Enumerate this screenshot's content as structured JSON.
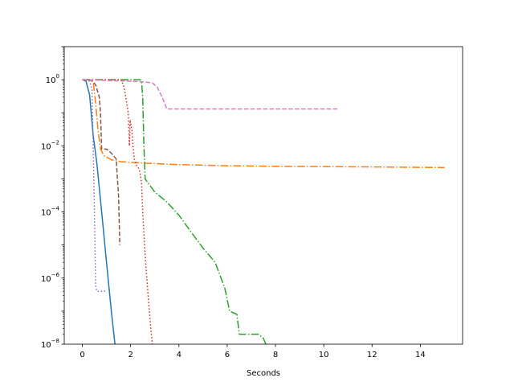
{
  "chart_data": {
    "type": "line",
    "title": "",
    "xlabel": "Seconds",
    "ylabel": "",
    "yscale": "log",
    "xlim": [
      -0.75,
      15.75
    ],
    "ylim": [
      1e-08,
      10
    ],
    "grid": false,
    "x_ticks": [
      {
        "value": 0,
        "label": "0"
      },
      {
        "value": 2,
        "label": "2"
      },
      {
        "value": 4,
        "label": "4"
      },
      {
        "value": 6,
        "label": "6"
      },
      {
        "value": 8,
        "label": "8"
      },
      {
        "value": 10,
        "label": "10"
      },
      {
        "value": 12,
        "label": "12"
      },
      {
        "value": 14,
        "label": "14"
      }
    ],
    "y_ticks": [
      {
        "value": 1,
        "base": "10",
        "exp": "0"
      },
      {
        "value": 0.01,
        "base": "10",
        "exp": "−2"
      },
      {
        "value": 0.0001,
        "base": "10",
        "exp": "−4"
      },
      {
        "value": 1e-06,
        "base": "10",
        "exp": "−6"
      },
      {
        "value": 1e-08,
        "base": "10",
        "exp": "−8"
      }
    ],
    "series": [
      {
        "color": "#1f77b4",
        "dash": "solid",
        "points": [
          [
            0,
            1
          ],
          [
            0.15,
            0.9
          ],
          [
            0.3,
            0.35
          ],
          [
            0.45,
            0.02
          ],
          [
            0.6,
            0.003
          ],
          [
            0.8,
            0.0001
          ],
          [
            1.0,
            3e-06
          ],
          [
            1.2,
            1e-07
          ],
          [
            1.35,
            1e-08
          ],
          [
            1.45,
            1.2e-09
          ]
        ]
      },
      {
        "color": "#ff7f0e",
        "dash": "dashdot",
        "points": [
          [
            0,
            1
          ],
          [
            0.3,
            1
          ],
          [
            0.45,
            0.85
          ],
          [
            0.55,
            0.2
          ],
          [
            0.65,
            0.03
          ],
          [
            0.75,
            0.008
          ],
          [
            0.9,
            0.005
          ],
          [
            1.2,
            0.0038
          ],
          [
            1.6,
            0.0033
          ],
          [
            2.5,
            0.003
          ],
          [
            4,
            0.0027
          ],
          [
            6,
            0.0025
          ],
          [
            8,
            0.0024
          ],
          [
            10,
            0.00235
          ],
          [
            12,
            0.0023
          ],
          [
            15,
            0.0022
          ]
        ]
      },
      {
        "color": "#2ca02c",
        "dash": "dashdot",
        "points": [
          [
            0,
            1
          ],
          [
            2.4,
            1
          ],
          [
            2.45,
            0.9
          ],
          [
            2.5,
            0.3
          ],
          [
            2.55,
            0.01
          ],
          [
            2.6,
            0.001
          ],
          [
            3,
            0.0004
          ],
          [
            3.5,
            0.0002
          ],
          [
            4,
            8e-05
          ],
          [
            4.5,
            2.5e-05
          ],
          [
            5,
            8e-06
          ],
          [
            5.5,
            3e-06
          ],
          [
            5.9,
            5e-07
          ],
          [
            6.1,
            1e-07
          ],
          [
            6.4,
            8e-08
          ],
          [
            6.5,
            2e-08
          ],
          [
            7.3,
            2e-08
          ],
          [
            7.5,
            1.5e-08
          ],
          [
            7.6,
            1e-08
          ],
          [
            7.8,
            6e-09
          ]
        ]
      },
      {
        "color": "#d62728",
        "dash": "dotted",
        "points": [
          [
            0,
            1
          ],
          [
            1.6,
            1
          ],
          [
            1.7,
            0.7
          ],
          [
            1.8,
            0.3
          ],
          [
            1.9,
            0.1
          ],
          [
            1.95,
            0.01
          ],
          [
            1.98,
            0.06
          ],
          [
            2.05,
            0.03
          ],
          [
            2.1,
            0.01
          ],
          [
            2.15,
            0.004
          ],
          [
            2.25,
            0.0025
          ],
          [
            2.35,
            0.002
          ],
          [
            2.4,
            0.0014
          ],
          [
            2.45,
            0.0008
          ],
          [
            2.5,
            0.0001
          ],
          [
            2.6,
            5e-06
          ],
          [
            2.7,
            5e-07
          ],
          [
            2.8,
            6e-08
          ],
          [
            2.9,
            1e-08
          ]
        ]
      },
      {
        "color": "#9467bd",
        "dash": "dotted",
        "points": [
          [
            0,
            1
          ],
          [
            0.3,
            0.9
          ],
          [
            0.4,
            0.5
          ],
          [
            0.45,
            0.01
          ],
          [
            0.5,
            0.0001
          ],
          [
            0.55,
            6e-07
          ],
          [
            0.6,
            4e-07
          ],
          [
            0.95,
            4e-07
          ]
        ]
      },
      {
        "color": "#8c564b",
        "dash": "dashed",
        "points": [
          [
            0,
            1
          ],
          [
            0.4,
            0.95
          ],
          [
            0.55,
            0.7
          ],
          [
            0.7,
            0.3
          ],
          [
            0.75,
            0.1
          ],
          [
            0.8,
            0.008
          ],
          [
            1.0,
            0.008
          ],
          [
            1.2,
            0.006
          ],
          [
            1.4,
            0.004
          ],
          [
            1.5,
            0.0003
          ],
          [
            1.55,
            1e-05
          ]
        ]
      },
      {
        "color": "#e377c2",
        "dash": "dashed",
        "points": [
          [
            0,
            1
          ],
          [
            1,
            0.95
          ],
          [
            2,
            0.9
          ],
          [
            2.6,
            0.85
          ],
          [
            2.9,
            0.8
          ],
          [
            3.1,
            0.6
          ],
          [
            3.3,
            0.3
          ],
          [
            3.5,
            0.13
          ],
          [
            10.6,
            0.13
          ]
        ]
      }
    ]
  }
}
